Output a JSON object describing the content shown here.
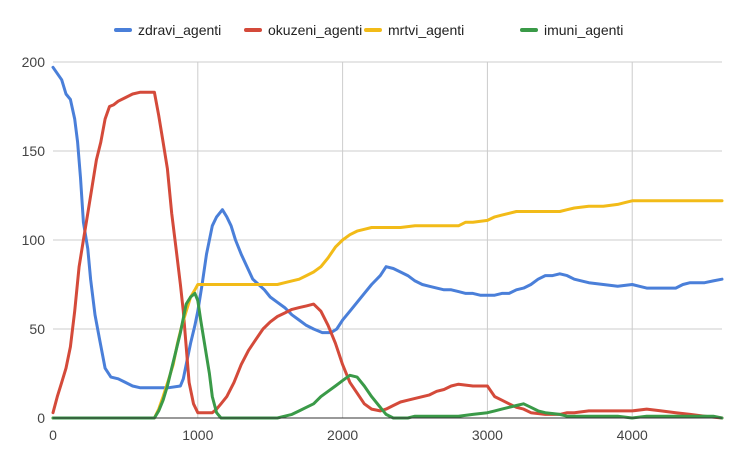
{
  "chart_data": {
    "type": "line",
    "title": "",
    "xlabel": "",
    "ylabel": "",
    "xlim": [
      0,
      4620
    ],
    "ylim": [
      0,
      200
    ],
    "x_ticks": [
      0,
      1000,
      2000,
      3000,
      4000
    ],
    "y_ticks": [
      0,
      50,
      100,
      150,
      200
    ],
    "grid": true,
    "legend_position": "top",
    "series": [
      {
        "name": "zdravi_agenti",
        "color": "#4a7fd9",
        "points": [
          [
            0,
            197
          ],
          [
            60,
            190
          ],
          [
            90,
            182
          ],
          [
            120,
            179
          ],
          [
            150,
            168
          ],
          [
            170,
            155
          ],
          [
            190,
            135
          ],
          [
            210,
            110
          ],
          [
            240,
            95
          ],
          [
            260,
            78
          ],
          [
            290,
            58
          ],
          [
            320,
            45
          ],
          [
            360,
            28
          ],
          [
            400,
            23
          ],
          [
            450,
            22
          ],
          [
            500,
            20
          ],
          [
            550,
            18
          ],
          [
            600,
            17
          ],
          [
            700,
            17
          ],
          [
            800,
            17
          ],
          [
            880,
            18
          ],
          [
            900,
            22
          ],
          [
            920,
            30
          ],
          [
            950,
            42
          ],
          [
            980,
            52
          ],
          [
            1000,
            60
          ],
          [
            1030,
            75
          ],
          [
            1060,
            92
          ],
          [
            1080,
            100
          ],
          [
            1100,
            108
          ],
          [
            1130,
            113
          ],
          [
            1170,
            117
          ],
          [
            1200,
            113
          ],
          [
            1230,
            108
          ],
          [
            1260,
            100
          ],
          [
            1300,
            92
          ],
          [
            1340,
            85
          ],
          [
            1380,
            78
          ],
          [
            1420,
            75
          ],
          [
            1460,
            72
          ],
          [
            1500,
            68
          ],
          [
            1550,
            65
          ],
          [
            1600,
            62
          ],
          [
            1650,
            58
          ],
          [
            1700,
            55
          ],
          [
            1750,
            52
          ],
          [
            1800,
            50
          ],
          [
            1860,
            48
          ],
          [
            1920,
            48
          ],
          [
            1960,
            50
          ],
          [
            2000,
            55
          ],
          [
            2050,
            60
          ],
          [
            2100,
            65
          ],
          [
            2150,
            70
          ],
          [
            2200,
            75
          ],
          [
            2260,
            80
          ],
          [
            2300,
            85
          ],
          [
            2350,
            84
          ],
          [
            2400,
            82
          ],
          [
            2450,
            80
          ],
          [
            2500,
            77
          ],
          [
            2550,
            75
          ],
          [
            2600,
            74
          ],
          [
            2650,
            73
          ],
          [
            2700,
            72
          ],
          [
            2750,
            72
          ],
          [
            2800,
            71
          ],
          [
            2850,
            70
          ],
          [
            2900,
            70
          ],
          [
            2950,
            69
          ],
          [
            3000,
            69
          ],
          [
            3050,
            69
          ],
          [
            3100,
            70
          ],
          [
            3150,
            70
          ],
          [
            3200,
            72
          ],
          [
            3250,
            73
          ],
          [
            3300,
            75
          ],
          [
            3350,
            78
          ],
          [
            3400,
            80
          ],
          [
            3450,
            80
          ],
          [
            3500,
            81
          ],
          [
            3550,
            80
          ],
          [
            3600,
            78
          ],
          [
            3650,
            77
          ],
          [
            3700,
            76
          ],
          [
            3800,
            75
          ],
          [
            3900,
            74
          ],
          [
            4000,
            75
          ],
          [
            4050,
            74
          ],
          [
            4100,
            73
          ],
          [
            4200,
            73
          ],
          [
            4300,
            73
          ],
          [
            4350,
            75
          ],
          [
            4400,
            76
          ],
          [
            4500,
            76
          ],
          [
            4560,
            77
          ],
          [
            4620,
            78
          ]
        ]
      },
      {
        "name": "okuzeni_agenti",
        "color": "#d44a3a",
        "points": [
          [
            0,
            3
          ],
          [
            30,
            12
          ],
          [
            60,
            20
          ],
          [
            90,
            28
          ],
          [
            120,
            40
          ],
          [
            150,
            60
          ],
          [
            180,
            85
          ],
          [
            210,
            100
          ],
          [
            240,
            115
          ],
          [
            270,
            130
          ],
          [
            300,
            145
          ],
          [
            330,
            155
          ],
          [
            360,
            168
          ],
          [
            390,
            175
          ],
          [
            420,
            176
          ],
          [
            450,
            178
          ],
          [
            500,
            180
          ],
          [
            550,
            182
          ],
          [
            600,
            183
          ],
          [
            640,
            183
          ],
          [
            700,
            183
          ],
          [
            730,
            170
          ],
          [
            760,
            155
          ],
          [
            790,
            140
          ],
          [
            820,
            115
          ],
          [
            850,
            95
          ],
          [
            880,
            75
          ],
          [
            900,
            60
          ],
          [
            920,
            40
          ],
          [
            940,
            20
          ],
          [
            970,
            8
          ],
          [
            1000,
            3
          ],
          [
            1100,
            3
          ],
          [
            1130,
            5
          ],
          [
            1160,
            8
          ],
          [
            1200,
            12
          ],
          [
            1250,
            20
          ],
          [
            1300,
            30
          ],
          [
            1350,
            38
          ],
          [
            1400,
            44
          ],
          [
            1450,
            50
          ],
          [
            1500,
            54
          ],
          [
            1550,
            57
          ],
          [
            1600,
            59
          ],
          [
            1650,
            61
          ],
          [
            1700,
            62
          ],
          [
            1750,
            63
          ],
          [
            1800,
            64
          ],
          [
            1850,
            60
          ],
          [
            1900,
            52
          ],
          [
            1950,
            42
          ],
          [
            2000,
            30
          ],
          [
            2050,
            20
          ],
          [
            2100,
            14
          ],
          [
            2150,
            8
          ],
          [
            2200,
            5
          ],
          [
            2260,
            4
          ],
          [
            2300,
            5
          ],
          [
            2350,
            7
          ],
          [
            2400,
            9
          ],
          [
            2450,
            10
          ],
          [
            2500,
            11
          ],
          [
            2600,
            13
          ],
          [
            2650,
            15
          ],
          [
            2700,
            16
          ],
          [
            2750,
            18
          ],
          [
            2800,
            19
          ],
          [
            2900,
            18
          ],
          [
            3000,
            18
          ],
          [
            3050,
            12
          ],
          [
            3100,
            10
          ],
          [
            3150,
            8
          ],
          [
            3200,
            6
          ],
          [
            3250,
            5
          ],
          [
            3300,
            3
          ],
          [
            3400,
            2
          ],
          [
            3500,
            2
          ],
          [
            3550,
            3
          ],
          [
            3600,
            3
          ],
          [
            3700,
            4
          ],
          [
            3800,
            4
          ],
          [
            3900,
            4
          ],
          [
            4000,
            4
          ],
          [
            4100,
            5
          ],
          [
            4200,
            4
          ],
          [
            4300,
            3
          ],
          [
            4400,
            2
          ],
          [
            4500,
            1
          ],
          [
            4620,
            0
          ]
        ]
      },
      {
        "name": "mrtvi_agenti",
        "color": "#f2bb18",
        "points": [
          [
            0,
            0
          ],
          [
            700,
            0
          ],
          [
            730,
            5
          ],
          [
            760,
            12
          ],
          [
            800,
            22
          ],
          [
            830,
            30
          ],
          [
            860,
            42
          ],
          [
            890,
            52
          ],
          [
            920,
            60
          ],
          [
            950,
            68
          ],
          [
            980,
            72
          ],
          [
            1000,
            75
          ],
          [
            1100,
            75
          ],
          [
            1200,
            75
          ],
          [
            1300,
            75
          ],
          [
            1400,
            75
          ],
          [
            1500,
            75
          ],
          [
            1550,
            75
          ],
          [
            1600,
            76
          ],
          [
            1650,
            77
          ],
          [
            1700,
            78
          ],
          [
            1750,
            80
          ],
          [
            1800,
            82
          ],
          [
            1850,
            85
          ],
          [
            1900,
            90
          ],
          [
            1950,
            96
          ],
          [
            2000,
            100
          ],
          [
            2050,
            103
          ],
          [
            2100,
            105
          ],
          [
            2150,
            106
          ],
          [
            2200,
            107
          ],
          [
            2300,
            107
          ],
          [
            2400,
            107
          ],
          [
            2500,
            108
          ],
          [
            2600,
            108
          ],
          [
            2700,
            108
          ],
          [
            2800,
            108
          ],
          [
            2850,
            110
          ],
          [
            2900,
            110
          ],
          [
            3000,
            111
          ],
          [
            3050,
            113
          ],
          [
            3100,
            114
          ],
          [
            3150,
            115
          ],
          [
            3200,
            116
          ],
          [
            3300,
            116
          ],
          [
            3400,
            116
          ],
          [
            3500,
            116
          ],
          [
            3550,
            117
          ],
          [
            3600,
            118
          ],
          [
            3700,
            119
          ],
          [
            3800,
            119
          ],
          [
            3900,
            120
          ],
          [
            3950,
            121
          ],
          [
            4000,
            122
          ],
          [
            4100,
            122
          ],
          [
            4200,
            122
          ],
          [
            4300,
            122
          ],
          [
            4400,
            122
          ],
          [
            4500,
            122
          ],
          [
            4620,
            122
          ]
        ]
      },
      {
        "name": "imuni_agenti",
        "color": "#3a9a48",
        "points": [
          [
            0,
            0
          ],
          [
            700,
            0
          ],
          [
            730,
            4
          ],
          [
            760,
            10
          ],
          [
            790,
            18
          ],
          [
            820,
            28
          ],
          [
            850,
            38
          ],
          [
            880,
            48
          ],
          [
            900,
            56
          ],
          [
            920,
            64
          ],
          [
            950,
            68
          ],
          [
            980,
            70
          ],
          [
            1000,
            66
          ],
          [
            1020,
            55
          ],
          [
            1040,
            45
          ],
          [
            1060,
            35
          ],
          [
            1080,
            25
          ],
          [
            1100,
            12
          ],
          [
            1130,
            3
          ],
          [
            1160,
            0
          ],
          [
            1200,
            0
          ],
          [
            1300,
            0
          ],
          [
            1400,
            0
          ],
          [
            1500,
            0
          ],
          [
            1550,
            0
          ],
          [
            1600,
            1
          ],
          [
            1650,
            2
          ],
          [
            1700,
            4
          ],
          [
            1750,
            6
          ],
          [
            1800,
            8
          ],
          [
            1850,
            12
          ],
          [
            1900,
            15
          ],
          [
            1950,
            18
          ],
          [
            2000,
            21
          ],
          [
            2050,
            24
          ],
          [
            2100,
            23
          ],
          [
            2150,
            18
          ],
          [
            2200,
            12
          ],
          [
            2250,
            7
          ],
          [
            2300,
            2
          ],
          [
            2350,
            0
          ],
          [
            2450,
            0
          ],
          [
            2500,
            1
          ],
          [
            2600,
            1
          ],
          [
            2700,
            1
          ],
          [
            2800,
            1
          ],
          [
            2900,
            2
          ],
          [
            3000,
            3
          ],
          [
            3050,
            4
          ],
          [
            3100,
            5
          ],
          [
            3150,
            6
          ],
          [
            3200,
            7
          ],
          [
            3250,
            8
          ],
          [
            3300,
            6
          ],
          [
            3350,
            4
          ],
          [
            3400,
            3
          ],
          [
            3500,
            2
          ],
          [
            3550,
            1
          ],
          [
            3600,
            1
          ],
          [
            3700,
            1
          ],
          [
            3800,
            1
          ],
          [
            3900,
            1
          ],
          [
            4000,
            0
          ],
          [
            4100,
            1
          ],
          [
            4200,
            1
          ],
          [
            4300,
            1
          ],
          [
            4400,
            1
          ],
          [
            4500,
            1
          ],
          [
            4560,
            1
          ],
          [
            4620,
            0
          ]
        ]
      }
    ]
  }
}
